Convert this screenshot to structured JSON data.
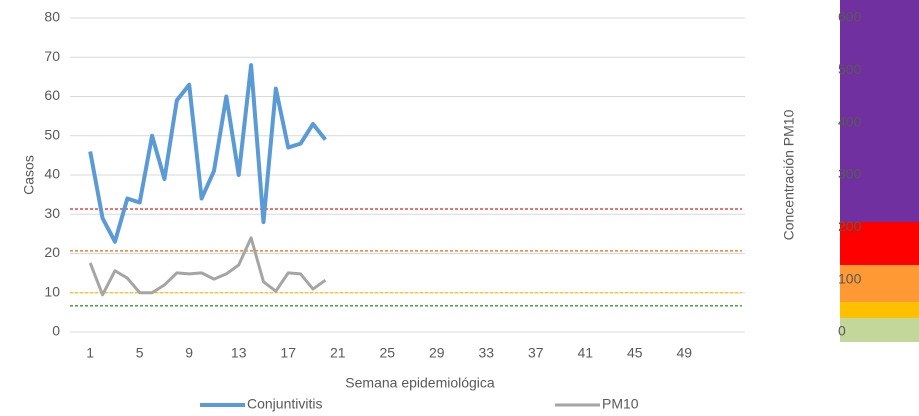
{
  "chart_data": {
    "type": "line",
    "x_label": "Semana epidemiológica",
    "y_label": "Casos",
    "y2_label": "Concentración PM10",
    "categories": [
      1,
      null,
      null,
      null,
      5,
      null,
      null,
      null,
      9,
      null,
      null,
      null,
      13,
      null,
      null,
      null,
      17,
      null,
      null,
      null,
      21,
      null,
      null,
      null,
      25,
      null,
      null,
      null,
      29,
      null,
      null,
      null,
      33,
      null,
      null,
      null,
      37,
      null,
      null,
      null,
      41,
      null,
      null,
      null,
      45,
      null,
      null,
      null,
      49,
      null,
      null,
      null,
      null
    ],
    "series": [
      {
        "name": "Conjuntivitis",
        "color": "#5b9bd5",
        "axis": "y",
        "values": [
          46,
          29,
          23,
          34,
          33,
          50,
          39,
          59,
          63,
          34,
          41,
          60,
          40,
          68,
          28,
          62,
          47,
          48,
          53,
          49,
          null,
          null,
          null,
          null,
          null,
          null,
          null,
          null,
          null,
          null,
          null,
          null,
          null,
          null,
          null,
          null,
          null,
          null,
          null,
          null,
          null,
          null,
          null,
          null,
          null,
          null,
          null,
          null,
          null,
          null,
          null,
          null,
          null
        ]
      },
      {
        "name": "PM10",
        "color": "#a5a5a5",
        "axis": "y2",
        "values": [
          132,
          71,
          117,
          103,
          75,
          75,
          90,
          113,
          111,
          113,
          101,
          111,
          128,
          180,
          96,
          78,
          113,
          111,
          82,
          99,
          null,
          null,
          null,
          null,
          null,
          null,
          null,
          null,
          null,
          null,
          null,
          null,
          null,
          null,
          null,
          null,
          null,
          null,
          null,
          null,
          null,
          null,
          null,
          null,
          null,
          null,
          null,
          null,
          null,
          null,
          null,
          null,
          null
        ]
      }
    ],
    "threshold_lines": [
      {
        "value": 50,
        "color": "#339933"
      },
      {
        "value": 75,
        "color": "#ffc000"
      },
      {
        "value": 155,
        "color": "#e46c0a"
      },
      {
        "value": 235,
        "color": "#e02020"
      }
    ],
    "ylim": [
      0,
      80
    ],
    "yticks": [
      0,
      10,
      20,
      30,
      40,
      50,
      60,
      70,
      80
    ],
    "y2lim": [
      0,
      600
    ],
    "y2ticks": [
      0,
      100,
      200,
      300,
      400,
      500,
      600
    ],
    "grid": true
  }
}
